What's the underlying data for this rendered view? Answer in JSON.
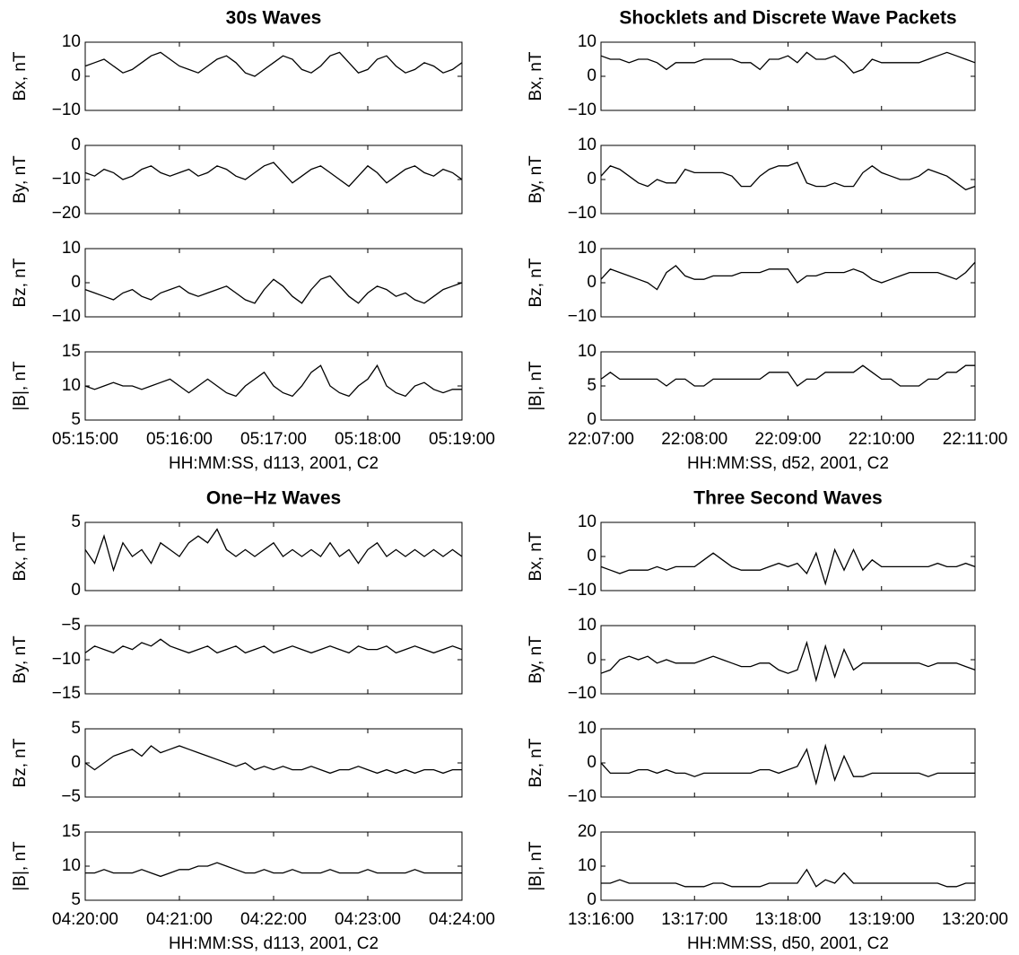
{
  "chart_data": [
    {
      "type": "line",
      "title": "30s Waves",
      "x_label": "HH:MM:SS, d113, 2001, C2",
      "color": "#000000",
      "x": [
        "05:15:00",
        "05:15:06",
        "05:15:12",
        "05:15:18",
        "05:15:24",
        "05:15:30",
        "05:15:36",
        "05:15:42",
        "05:15:48",
        "05:15:54",
        "05:16:00",
        "05:16:06",
        "05:16:12",
        "05:16:18",
        "05:16:24",
        "05:16:30",
        "05:16:36",
        "05:16:42",
        "05:16:48",
        "05:16:54",
        "05:17:00",
        "05:17:06",
        "05:17:12",
        "05:17:18",
        "05:17:24",
        "05:17:30",
        "05:17:36",
        "05:17:42",
        "05:17:48",
        "05:17:54",
        "05:18:00",
        "05:18:06",
        "05:18:12",
        "05:18:18",
        "05:18:24",
        "05:18:30",
        "05:18:36",
        "05:18:42",
        "05:18:48",
        "05:18:54",
        "05:19:00"
      ],
      "xlim": [
        "05:15:00",
        "05:19:00"
      ],
      "xticks": [
        "05:15:00",
        "05:16:00",
        "05:17:00",
        "05:18:00",
        "05:19:00"
      ],
      "panels": [
        {
          "ylabel": "Bx, nT",
          "ylim": [
            -10,
            10
          ],
          "yticks": [
            {
              "value": -10,
              "label": "−10"
            },
            0,
            10
          ],
          "values": [
            3,
            4,
            5,
            3,
            1,
            2,
            4,
            6,
            7,
            5,
            3,
            2,
            1,
            3,
            5,
            6,
            4,
            1,
            0,
            2,
            4,
            6,
            5,
            2,
            1,
            3,
            6,
            7,
            4,
            1,
            2,
            5,
            6,
            3,
            1,
            2,
            4,
            3,
            1,
            2,
            4
          ]
        },
        {
          "ylabel": "By, nT",
          "ylim": [
            -20,
            0
          ],
          "yticks": [
            {
              "value": -20,
              "label": "−20"
            },
            {
              "value": -10,
              "label": "−10"
            },
            0
          ],
          "values": [
            -8,
            -9,
            -7,
            -8,
            -10,
            -9,
            -7,
            -6,
            -8,
            -9,
            -8,
            -7,
            -9,
            -8,
            -6,
            -7,
            -9,
            -10,
            -8,
            -6,
            -5,
            -8,
            -11,
            -9,
            -7,
            -6,
            -8,
            -10,
            -12,
            -9,
            -6,
            -8,
            -11,
            -9,
            -7,
            -6,
            -8,
            -9,
            -7,
            -8,
            -10
          ]
        },
        {
          "ylabel": "Bz, nT",
          "ylim": [
            -10,
            10
          ],
          "yticks": [
            {
              "value": -10,
              "label": "−10"
            },
            0,
            10
          ],
          "values": [
            -2,
            -3,
            -4,
            -5,
            -3,
            -2,
            -4,
            -5,
            -3,
            -2,
            -1,
            -3,
            -4,
            -3,
            -2,
            -1,
            -3,
            -5,
            -6,
            -2,
            1,
            -1,
            -4,
            -6,
            -2,
            1,
            2,
            -1,
            -4,
            -6,
            -3,
            -1,
            -2,
            -4,
            -3,
            -5,
            -6,
            -4,
            -2,
            -1,
            0
          ]
        },
        {
          "ylabel": "|B|, nT",
          "ylim": [
            5,
            15
          ],
          "yticks": [
            5,
            10,
            15
          ],
          "values": [
            10,
            9.5,
            10,
            10.5,
            10,
            10,
            9.5,
            10,
            10.5,
            11,
            10,
            9,
            10,
            11,
            10,
            9,
            8.5,
            10,
            11,
            12,
            10,
            9,
            8.5,
            10,
            12,
            13,
            10,
            9,
            8.5,
            10,
            11,
            13,
            10,
            9,
            8.5,
            10,
            10.5,
            9.5,
            9,
            9.5,
            9.5
          ]
        }
      ]
    },
    {
      "type": "line",
      "title": "Shocklets and Discrete Wave Packets",
      "x_label": "HH:MM:SS, d52, 2001, C2",
      "color": "#000000",
      "x": [
        "22:07:00",
        "22:07:06",
        "22:07:12",
        "22:07:18",
        "22:07:24",
        "22:07:30",
        "22:07:36",
        "22:07:42",
        "22:07:48",
        "22:07:54",
        "22:08:00",
        "22:08:06",
        "22:08:12",
        "22:08:18",
        "22:08:24",
        "22:08:30",
        "22:08:36",
        "22:08:42",
        "22:08:48",
        "22:08:54",
        "22:09:00",
        "22:09:06",
        "22:09:12",
        "22:09:18",
        "22:09:24",
        "22:09:30",
        "22:09:36",
        "22:09:42",
        "22:09:48",
        "22:09:54",
        "22:10:00",
        "22:10:06",
        "22:10:12",
        "22:10:18",
        "22:10:24",
        "22:10:30",
        "22:10:36",
        "22:10:42",
        "22:10:48",
        "22:10:54",
        "22:11:00"
      ],
      "xlim": [
        "22:07:00",
        "22:11:00"
      ],
      "xticks": [
        "22:07:00",
        "22:08:00",
        "22:09:00",
        "22:10:00",
        "22:11:00"
      ],
      "panels": [
        {
          "ylabel": "Bx, nT",
          "ylim": [
            -10,
            10
          ],
          "yticks": [
            {
              "value": -10,
              "label": "−10"
            },
            0,
            10
          ],
          "values": [
            6,
            5,
            5,
            4,
            5,
            5,
            4,
            2,
            4,
            4,
            4,
            5,
            5,
            5,
            5,
            4,
            4,
            2,
            5,
            5,
            6,
            4,
            7,
            5,
            5,
            6,
            4,
            1,
            2,
            5,
            4,
            4,
            4,
            4,
            4,
            5,
            6,
            7,
            6,
            5,
            4
          ]
        },
        {
          "ylabel": "By, nT",
          "ylim": [
            -10,
            10
          ],
          "yticks": [
            {
              "value": -10,
              "label": "−10"
            },
            0,
            10
          ],
          "values": [
            1,
            4,
            3,
            1,
            -1,
            -2,
            0,
            -1,
            -1,
            3,
            2,
            2,
            2,
            2,
            1,
            -2,
            -2,
            1,
            3,
            4,
            4,
            5,
            -1,
            -2,
            -2,
            -1,
            -2,
            -2,
            2,
            4,
            2,
            1,
            0,
            0,
            1,
            3,
            2,
            1,
            -1,
            -3,
            -2
          ]
        },
        {
          "ylabel": "Bz, nT",
          "ylim": [
            -10,
            10
          ],
          "yticks": [
            {
              "value": -10,
              "label": "−10"
            },
            0,
            10
          ],
          "values": [
            1,
            4,
            3,
            2,
            1,
            0,
            -2,
            3,
            5,
            2,
            1,
            1,
            2,
            2,
            2,
            3,
            3,
            3,
            4,
            4,
            4,
            0,
            2,
            2,
            3,
            3,
            3,
            4,
            3,
            1,
            0,
            1,
            2,
            3,
            3,
            3,
            3,
            2,
            1,
            3,
            6
          ]
        },
        {
          "ylabel": "|B|, nT",
          "ylim": [
            0,
            10
          ],
          "yticks": [
            0,
            5,
            10
          ],
          "values": [
            6,
            7,
            6,
            6,
            6,
            6,
            6,
            5,
            6,
            6,
            5,
            5,
            6,
            6,
            6,
            6,
            6,
            6,
            7,
            7,
            7,
            5,
            6,
            6,
            7,
            7,
            7,
            7,
            8,
            7,
            6,
            6,
            5,
            5,
            5,
            6,
            6,
            7,
            7,
            8,
            8
          ]
        }
      ]
    },
    {
      "type": "line",
      "title": "One−Hz Waves",
      "x_label": "HH:MM:SS, d113, 2001, C2",
      "color": "#000000",
      "x": [
        "04:20:00",
        "04:20:06",
        "04:20:12",
        "04:20:18",
        "04:20:24",
        "04:20:30",
        "04:20:36",
        "04:20:42",
        "04:20:48",
        "04:20:54",
        "04:21:00",
        "04:21:06",
        "04:21:12",
        "04:21:18",
        "04:21:24",
        "04:21:30",
        "04:21:36",
        "04:21:42",
        "04:21:48",
        "04:21:54",
        "04:22:00",
        "04:22:06",
        "04:22:12",
        "04:22:18",
        "04:22:24",
        "04:22:30",
        "04:22:36",
        "04:22:42",
        "04:22:48",
        "04:22:54",
        "04:23:00",
        "04:23:06",
        "04:23:12",
        "04:23:18",
        "04:23:24",
        "04:23:30",
        "04:23:36",
        "04:23:42",
        "04:23:48",
        "04:23:54",
        "04:24:00"
      ],
      "xlim": [
        "04:20:00",
        "04:24:00"
      ],
      "xticks": [
        "04:20:00",
        "04:21:00",
        "04:22:00",
        "04:23:00",
        "04:24:00"
      ],
      "panels": [
        {
          "ylabel": "Bx, nT",
          "ylim": [
            0,
            5
          ],
          "yticks": [
            0,
            5
          ],
          "values": [
            3,
            2,
            4,
            1.5,
            3.5,
            2.5,
            3,
            2,
            3.5,
            3,
            2.5,
            3.5,
            4,
            3.5,
            4.5,
            3,
            2.5,
            3,
            2.5,
            3,
            3.5,
            2.5,
            3,
            2.5,
            3,
            2.5,
            3.5,
            2.5,
            3,
            2,
            3,
            3.5,
            2.5,
            3,
            2.5,
            3,
            2.5,
            3,
            2.5,
            3,
            2.5
          ]
        },
        {
          "ylabel": "By, nT",
          "ylim": [
            -15,
            -5
          ],
          "yticks": [
            {
              "value": -15,
              "label": "−15"
            },
            {
              "value": -10,
              "label": "−10"
            },
            {
              "value": -5,
              "label": "−5"
            }
          ],
          "values": [
            -9,
            -8,
            -8.5,
            -9,
            -8,
            -8.5,
            -7.5,
            -8,
            -7,
            -8,
            -8.5,
            -9,
            -8.5,
            -8,
            -9,
            -8.5,
            -8,
            -9,
            -8.5,
            -8,
            -9,
            -8.5,
            -8,
            -8.5,
            -9,
            -8.5,
            -8,
            -8.5,
            -9,
            -8,
            -8.5,
            -8.5,
            -8,
            -9,
            -8.5,
            -8,
            -8.5,
            -9,
            -8.5,
            -8,
            -8.5
          ]
        },
        {
          "ylabel": "Bz, nT",
          "ylim": [
            -5,
            5
          ],
          "yticks": [
            {
              "value": -5,
              "label": "−5"
            },
            0,
            5
          ],
          "values": [
            0,
            -1,
            0,
            1,
            1.5,
            2,
            1,
            2.5,
            1.5,
            2,
            2.5,
            2,
            1.5,
            1,
            0.5,
            0,
            -0.5,
            0,
            -1,
            -0.5,
            -1,
            -0.5,
            -1,
            -1,
            -0.5,
            -1,
            -1.5,
            -1,
            -1,
            -0.5,
            -1,
            -1.5,
            -1,
            -1.5,
            -1,
            -1.5,
            -1,
            -1,
            -1.5,
            -1,
            -1
          ]
        },
        {
          "ylabel": "|B|, nT",
          "ylim": [
            5,
            15
          ],
          "yticks": [
            5,
            10,
            15
          ],
          "values": [
            9,
            9,
            9.5,
            9,
            9,
            9,
            9.5,
            9,
            8.5,
            9,
            9.5,
            9.5,
            10,
            10,
            10.5,
            10,
            9.5,
            9,
            9,
            9.5,
            9,
            9,
            9.5,
            9,
            9,
            9,
            9.5,
            9,
            9,
            9,
            9.5,
            9,
            9,
            9,
            9,
            9.5,
            9,
            9,
            9,
            9,
            9
          ]
        }
      ]
    },
    {
      "type": "line",
      "title": "Three Second Waves",
      "x_label": "HH:MM:SS, d50, 2001, C2",
      "color": "#000000",
      "x": [
        "13:16:00",
        "13:16:06",
        "13:16:12",
        "13:16:18",
        "13:16:24",
        "13:16:30",
        "13:16:36",
        "13:16:42",
        "13:16:48",
        "13:16:54",
        "13:17:00",
        "13:17:06",
        "13:17:12",
        "13:17:18",
        "13:17:24",
        "13:17:30",
        "13:17:36",
        "13:17:42",
        "13:17:48",
        "13:17:54",
        "13:18:00",
        "13:18:06",
        "13:18:12",
        "13:18:18",
        "13:18:24",
        "13:18:30",
        "13:18:36",
        "13:18:42",
        "13:18:48",
        "13:18:54",
        "13:19:00",
        "13:19:06",
        "13:19:12",
        "13:19:18",
        "13:19:24",
        "13:19:30",
        "13:19:36",
        "13:19:42",
        "13:19:48",
        "13:19:54",
        "13:20:00"
      ],
      "xlim": [
        "13:16:00",
        "13:20:00"
      ],
      "xticks": [
        "13:16:00",
        "13:17:00",
        "13:18:00",
        "13:19:00",
        "13:20:00"
      ],
      "panels": [
        {
          "ylabel": "Bx, nT",
          "ylim": [
            -10,
            10
          ],
          "yticks": [
            {
              "value": -10,
              "label": "−10"
            },
            0,
            10
          ],
          "values": [
            -3,
            -4,
            -5,
            -4,
            -4,
            -4,
            -3,
            -4,
            -3,
            -3,
            -3,
            -1,
            1,
            -1,
            -3,
            -4,
            -4,
            -4,
            -3,
            -2,
            -3,
            -2,
            -5,
            1,
            -8,
            2,
            -4,
            2,
            -4,
            -1,
            -3,
            -3,
            -3,
            -3,
            -3,
            -3,
            -2,
            -3,
            -3,
            -2,
            -3
          ]
        },
        {
          "ylabel": "By, nT",
          "ylim": [
            -10,
            10
          ],
          "yticks": [
            {
              "value": -10,
              "label": "−10"
            },
            0,
            10
          ],
          "values": [
            -4,
            -3,
            0,
            1,
            0,
            1,
            -1,
            0,
            -1,
            -1,
            -1,
            0,
            1,
            0,
            -1,
            -2,
            -2,
            -1,
            -1,
            -3,
            -4,
            -3,
            5,
            -6,
            4,
            -5,
            3,
            -3,
            -1,
            -1,
            -1,
            -1,
            -1,
            -1,
            -1,
            -2,
            -1,
            -1,
            -1,
            -2,
            -3
          ]
        },
        {
          "ylabel": "Bz, nT",
          "ylim": [
            -10,
            10
          ],
          "yticks": [
            {
              "value": -10,
              "label": "−10"
            },
            0,
            10
          ],
          "values": [
            0,
            -3,
            -3,
            -3,
            -2,
            -2,
            -3,
            -2,
            -3,
            -3,
            -4,
            -3,
            -3,
            -3,
            -3,
            -3,
            -3,
            -2,
            -2,
            -3,
            -2,
            -1,
            4,
            -6,
            5,
            -5,
            2,
            -4,
            -4,
            -3,
            -3,
            -3,
            -3,
            -3,
            -3,
            -4,
            -3,
            -3,
            -3,
            -3,
            -3
          ]
        },
        {
          "ylabel": "|B|, nT",
          "ylim": [
            0,
            20
          ],
          "yticks": [
            0,
            10,
            20
          ],
          "values": [
            5,
            5,
            6,
            5,
            5,
            5,
            5,
            5,
            5,
            4,
            4,
            4,
            5,
            5,
            4,
            4,
            4,
            4,
            5,
            5,
            5,
            5,
            9,
            4,
            6,
            5,
            8,
            5,
            5,
            5,
            5,
            5,
            5,
            5,
            5,
            5,
            5,
            4,
            4,
            5,
            5
          ]
        }
      ]
    }
  ]
}
